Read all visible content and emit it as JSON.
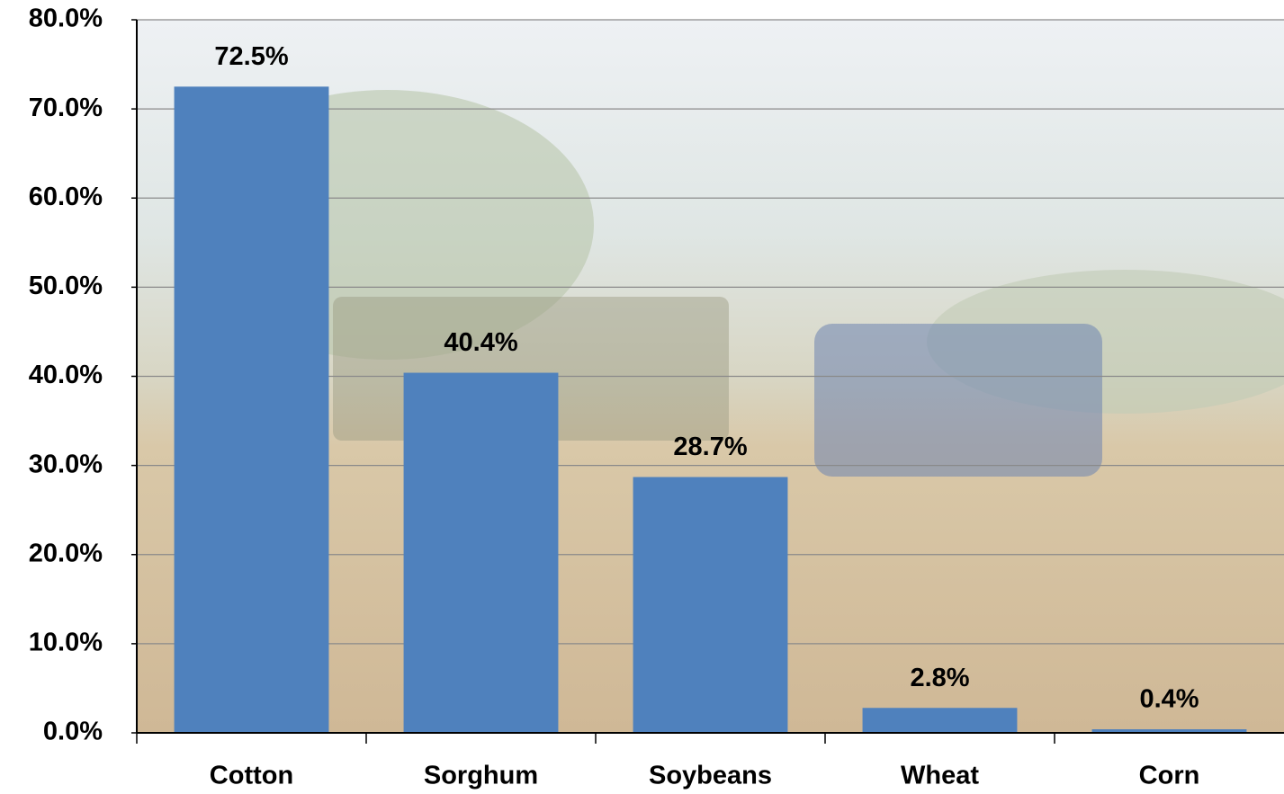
{
  "chart_data": {
    "type": "bar",
    "categories": [
      "Cotton",
      "Sorghum",
      "Soybeans",
      "Wheat",
      "Corn"
    ],
    "values": [
      72.5,
      40.4,
      28.7,
      2.8,
      0.4
    ],
    "value_labels": [
      "72.5%",
      "40.4%",
      "28.7%",
      "2.8%",
      "0.4%"
    ],
    "color": "#4f81bd",
    "ylim": [
      0,
      80
    ],
    "yticks": [
      {
        "value": 0,
        "label": "0.0%"
      },
      {
        "value": 10,
        "label": "10.0%"
      },
      {
        "value": 20,
        "label": "20.0%"
      },
      {
        "value": 30,
        "label": "30.0%"
      },
      {
        "value": 40,
        "label": "40.0%"
      },
      {
        "value": 50,
        "label": "50.0%"
      },
      {
        "value": 60,
        "label": "60.0%"
      },
      {
        "value": 70,
        "label": "70.0%"
      },
      {
        "value": 80,
        "label": "80.0%"
      }
    ],
    "grid": true
  }
}
